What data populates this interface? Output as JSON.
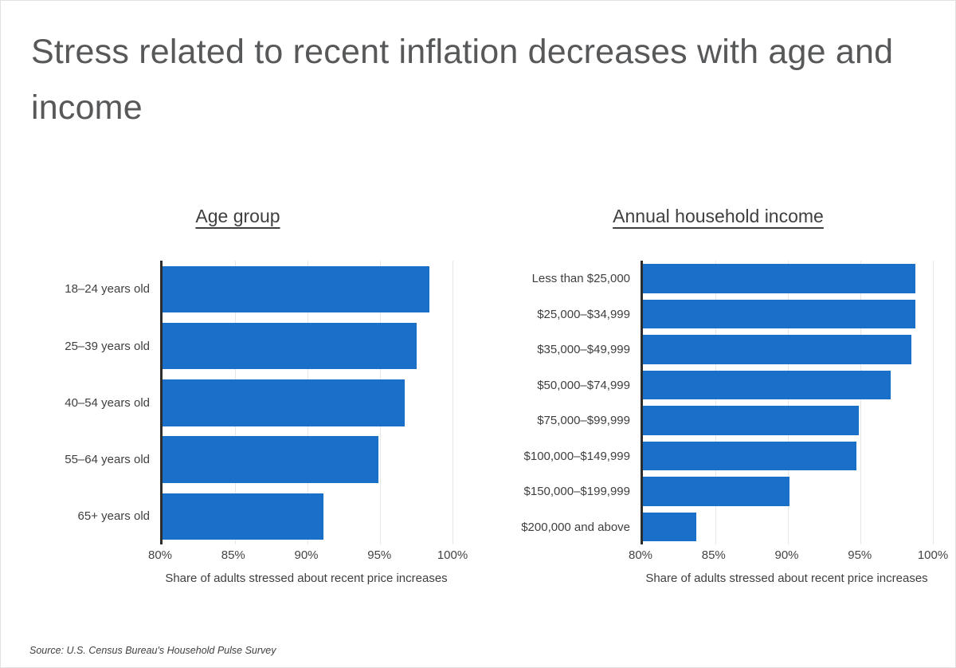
{
  "page": {
    "title": "Stress related to recent inflation decreases with age and income",
    "source": "Source: U.S. Census Bureau's Household Pulse Survey"
  },
  "colors": {
    "bar": "#1a70c8",
    "axis_line": "#2d2d2d",
    "gridline": "#e7e7e7",
    "title_text": "#57585a",
    "label_text": "#3f3f3f"
  },
  "chart_data": [
    {
      "type": "bar",
      "orientation": "horizontal",
      "title": "Age group",
      "categories": [
        "18–24 years old",
        "25–39 years old",
        "40–54 years old",
        "55–64 years old",
        "65+ years old"
      ],
      "values": [
        98.4,
        97.5,
        96.7,
        94.9,
        91.1
      ],
      "xlabel": "Share of adults stressed about recent price increases",
      "xlim": [
        80,
        100
      ],
      "xticks": [
        "80%",
        "85%",
        "90%",
        "95%",
        "100%"
      ],
      "grid": true,
      "legend": "none"
    },
    {
      "type": "bar",
      "orientation": "horizontal",
      "title": "Annual household income",
      "categories": [
        "Less than $25,000",
        "$25,000–$34,999",
        "$35,000–$49,999",
        "$50,000–$74,999",
        "$75,000–$99,999",
        "$100,000–$149,999",
        "$150,000–$199,999",
        "$200,000 and above"
      ],
      "values": [
        98.8,
        98.8,
        98.5,
        97.1,
        94.9,
        94.7,
        90.1,
        83.7
      ],
      "xlabel": "Share of adults stressed about recent price increases",
      "xlim": [
        80,
        100
      ],
      "xticks": [
        "80%",
        "85%",
        "90%",
        "95%",
        "100%"
      ],
      "grid": true,
      "legend": "none"
    }
  ]
}
